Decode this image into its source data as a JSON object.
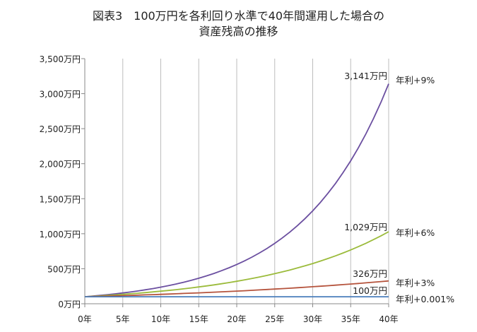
{
  "chart_data": {
    "type": "line",
    "title": [
      "図表3　100万円を各利回り水準で40年間運用した場合の",
      "資産残高の推移"
    ],
    "xlabel": "",
    "ylabel": "",
    "xlim": [
      0,
      40
    ],
    "ylim": [
      0,
      3500
    ],
    "x_ticks": [
      0,
      5,
      10,
      15,
      20,
      25,
      30,
      35,
      40
    ],
    "x_tick_labels": [
      "0年",
      "5年",
      "10年",
      "15年",
      "20年",
      "25年",
      "30年",
      "35年",
      "40年"
    ],
    "y_ticks": [
      0,
      500,
      1000,
      1500,
      2000,
      2500,
      3000,
      3500
    ],
    "y_tick_labels": [
      "0万円",
      "500万円",
      "1,000万円",
      "1,500万円",
      "2,000万円",
      "2,500万円",
      "3,000万円",
      "3,500万円"
    ],
    "grid": "vertical",
    "x": [
      0,
      1,
      2,
      3,
      4,
      5,
      6,
      7,
      8,
      9,
      10,
      11,
      12,
      13,
      14,
      15,
      16,
      17,
      18,
      19,
      20,
      21,
      22,
      23,
      24,
      25,
      26,
      27,
      28,
      29,
      30,
      31,
      32,
      33,
      34,
      35,
      36,
      37,
      38,
      39,
      40
    ],
    "series": [
      {
        "name": "年利+9%",
        "color": "#6b4fa0",
        "end_label": "3,141万円",
        "values": [
          100,
          109,
          118.8,
          129.5,
          141.2,
          153.9,
          167.7,
          182.8,
          199.3,
          217.2,
          236.7,
          258.0,
          281.3,
          306.6,
          334.2,
          364.2,
          397.0,
          432.8,
          471.7,
          514.2,
          560.4,
          610.9,
          665.9,
          725.8,
          791.1,
          862.3,
          939.9,
          1024.5,
          1116.7,
          1217.2,
          1326.8,
          1446.2,
          1576.3,
          1718.2,
          1872.8,
          2041.4,
          2225.1,
          2425.4,
          2643.6,
          2881.5,
          3140.9
        ]
      },
      {
        "name": "年利+6%",
        "color": "#9bbb3b",
        "end_label": "1,029万円",
        "values": [
          100,
          106,
          112.4,
          119.1,
          126.2,
          133.8,
          141.9,
          150.4,
          159.4,
          169.0,
          179.1,
          189.8,
          201.2,
          213.3,
          226.1,
          239.7,
          254.0,
          269.3,
          285.4,
          302.6,
          320.7,
          340.0,
          360.4,
          382.0,
          404.9,
          429.2,
          455.0,
          482.3,
          511.2,
          541.9,
          574.3,
          608.8,
          645.3,
          684.1,
          725.1,
          768.6,
          814.7,
          863.6,
          915.4,
          970.3,
          1028.6
        ]
      },
      {
        "name": "年利+3%",
        "color": "#b5533c",
        "end_label": "326万円",
        "values": [
          100,
          103,
          106.1,
          109.3,
          112.6,
          115.9,
          119.4,
          123.0,
          126.7,
          130.5,
          134.4,
          138.4,
          142.6,
          146.9,
          151.3,
          155.8,
          160.5,
          165.3,
          170.2,
          175.4,
          180.6,
          186.0,
          191.6,
          197.4,
          203.3,
          209.4,
          215.7,
          222.1,
          228.8,
          235.7,
          242.7,
          250.0,
          257.5,
          265.2,
          273.2,
          281.4,
          289.8,
          298.5,
          307.5,
          316.7,
          326.2
        ]
      },
      {
        "name": "年利+0.001%",
        "color": "#4a7ebb",
        "end_label": "100万円",
        "values": [
          100,
          100,
          100,
          100,
          100,
          100,
          100,
          100,
          100,
          100,
          100,
          100,
          100,
          100,
          100,
          100,
          100,
          100,
          100,
          100,
          100,
          100,
          100,
          100,
          100,
          100,
          100,
          100,
          100,
          100,
          100,
          100,
          100,
          100,
          100,
          100,
          100,
          100,
          100,
          100,
          100
        ]
      }
    ]
  }
}
